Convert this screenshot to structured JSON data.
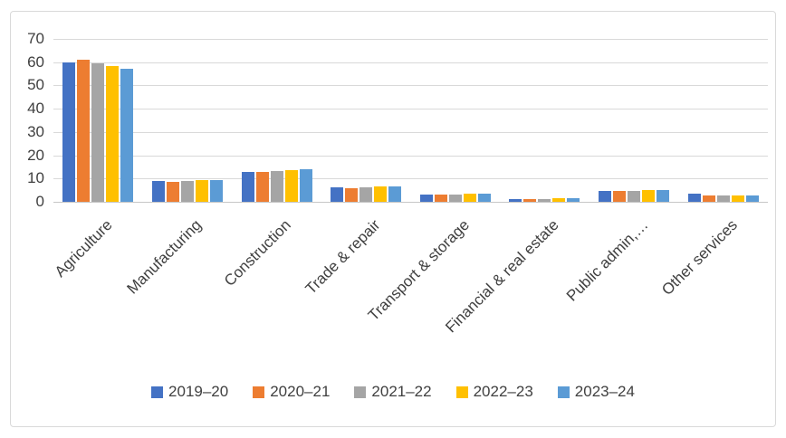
{
  "chart_data": {
    "type": "bar",
    "title": "",
    "xlabel": "",
    "ylabel": "",
    "categories": [
      "Agriculture",
      "Manufacturing",
      "Construction",
      "Trade & repair",
      "Transport & storage",
      "Financial & real estate",
      "Public admin,…",
      "Other services"
    ],
    "series": [
      {
        "name": "2019–20",
        "color": "#4472C4",
        "values": [
          60.0,
          8.8,
          13.0,
          6.2,
          3.0,
          1.2,
          4.5,
          3.7
        ]
      },
      {
        "name": "2020–21",
        "color": "#ED7D31",
        "values": [
          61.0,
          8.6,
          12.8,
          6.0,
          3.2,
          1.2,
          4.5,
          2.9
        ]
      },
      {
        "name": "2021–22",
        "color": "#A5A5A5",
        "values": [
          59.5,
          9.0,
          13.3,
          6.3,
          3.2,
          1.3,
          4.6,
          2.6
        ]
      },
      {
        "name": "2022–23",
        "color": "#FFC000",
        "values": [
          58.5,
          9.3,
          13.6,
          6.6,
          3.4,
          1.4,
          5.0,
          2.8
        ]
      },
      {
        "name": "2023–24",
        "color": "#5B9BD5",
        "values": [
          57.0,
          9.5,
          14.0,
          6.8,
          3.5,
          1.6,
          5.2,
          2.7
        ]
      }
    ],
    "ylim": [
      0,
      70
    ],
    "ytick_step": 10,
    "yticks": [
      "0",
      "10",
      "20",
      "30",
      "40",
      "50",
      "60",
      "70"
    ],
    "grid": true,
    "legend_position": "bottom"
  },
  "colors": {
    "background": "#ffffff",
    "frame_border": "#d9d9d9",
    "gridline": "#d9d9d9",
    "axis_line": "#c6c6c6",
    "tick_text": "#404040",
    "label_text": "#404040",
    "legend_text": "#404040"
  }
}
